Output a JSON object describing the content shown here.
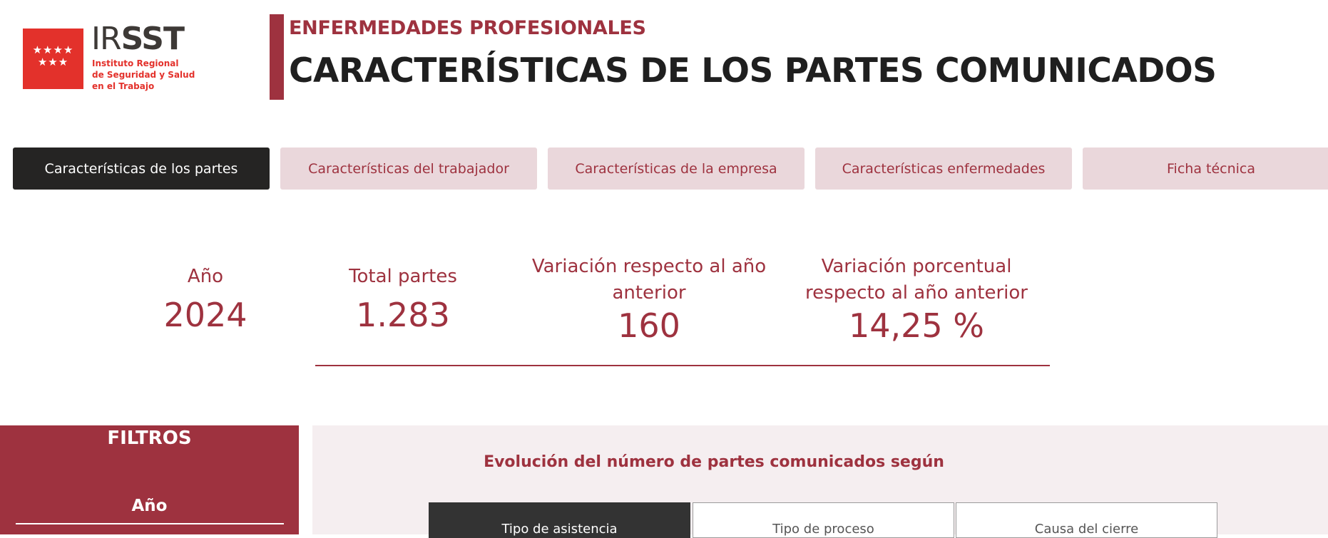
{
  "logo": {
    "stars": [
      "★★★★",
      "★★★"
    ],
    "brand_light": "IR",
    "brand_bold": "SST",
    "sub": [
      "Instituto Regional",
      "de Seguridad y Salud",
      "en el Trabajo"
    ]
  },
  "header": {
    "subtitle": "ENFERMEDADES PROFESIONALES",
    "title": "CARACTERÍSTICAS DE LOS PARTES COMUNICADOS"
  },
  "tabs": [
    {
      "label": "Características de los partes",
      "active": true
    },
    {
      "label": "Características del trabajador",
      "active": false
    },
    {
      "label": "Características de la empresa",
      "active": false
    },
    {
      "label": "Características enfermedades",
      "active": false
    },
    {
      "label": "Ficha técnica",
      "active": false
    }
  ],
  "kpis": {
    "year": {
      "label": "Año",
      "value": "2024"
    },
    "total": {
      "label": "Total partes",
      "value": "1.283"
    },
    "variation": {
      "label_1": "Variación respecto al año",
      "label_2": "anterior",
      "value": "160"
    },
    "pct_variation": {
      "label_1": "Variación porcentual",
      "label_2": "respecto al año anterior",
      "value": "14,25 %"
    }
  },
  "filters": {
    "title": "FILTROS",
    "year_label": "Año"
  },
  "chart_panel": {
    "title": "Evolución del número de partes comunicados según",
    "segments": [
      {
        "label": "Tipo de asistencia",
        "active": true
      },
      {
        "label": "Tipo de proceso",
        "active": false
      },
      {
        "label": "Causa del cierre",
        "active": false
      }
    ]
  },
  "colors": {
    "accent": "#9e323f",
    "logo_red": "#e3312b",
    "tab_inactive_bg": "#ead7db",
    "tab_active_bg": "#252423"
  }
}
